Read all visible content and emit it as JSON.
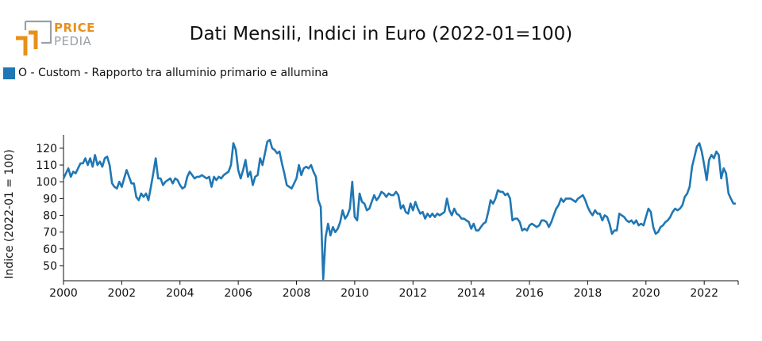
{
  "logo": {
    "word1": "PRICE",
    "word2": "PEDIA",
    "orange": "#e8901a",
    "gray": "#9aa0a6"
  },
  "chart_data": {
    "type": "line",
    "title": "Dati Mensili, Indici in Euro (2022-01=100)",
    "ylabel": "Indice (2022-01 = 100)",
    "xlabel": "",
    "xlim": [
      "2000-01",
      "2023-03"
    ],
    "ylim": [
      41,
      128
    ],
    "x_ticks": [
      "2000",
      "2002",
      "2004",
      "2006",
      "2008",
      "2010",
      "2012",
      "2014",
      "2016",
      "2018",
      "2020",
      "2022"
    ],
    "y_ticks": [
      50,
      60,
      70,
      80,
      90,
      100,
      110,
      120
    ],
    "grid": false,
    "legend_position": "top-left",
    "series": [
      {
        "name": "O - Custom - Rapporto tra alluminio primario e allumina",
        "color": "#1f77b4",
        "x": [
          "2000-01",
          "2000-02",
          "2000-03",
          "2000-04",
          "2000-05",
          "2000-06",
          "2000-07",
          "2000-08",
          "2000-09",
          "2000-10",
          "2000-11",
          "2000-12",
          "2001-01",
          "2001-02",
          "2001-03",
          "2001-04",
          "2001-05",
          "2001-06",
          "2001-07",
          "2001-08",
          "2001-09",
          "2001-10",
          "2001-11",
          "2001-12",
          "2002-01",
          "2002-02",
          "2002-03",
          "2002-04",
          "2002-05",
          "2002-06",
          "2002-07",
          "2002-08",
          "2002-09",
          "2002-10",
          "2002-11",
          "2002-12",
          "2003-01",
          "2003-02",
          "2003-03",
          "2003-04",
          "2003-05",
          "2003-06",
          "2003-07",
          "2003-08",
          "2003-09",
          "2003-10",
          "2003-11",
          "2003-12",
          "2004-01",
          "2004-02",
          "2004-03",
          "2004-04",
          "2004-05",
          "2004-06",
          "2004-07",
          "2004-08",
          "2004-09",
          "2004-10",
          "2004-11",
          "2004-12",
          "2005-01",
          "2005-02",
          "2005-03",
          "2005-04",
          "2005-05",
          "2005-06",
          "2005-07",
          "2005-08",
          "2005-09",
          "2005-10",
          "2005-11",
          "2005-12",
          "2006-01",
          "2006-02",
          "2006-03",
          "2006-04",
          "2006-05",
          "2006-06",
          "2006-07",
          "2006-08",
          "2006-09",
          "2006-10",
          "2006-11",
          "2006-12",
          "2007-01",
          "2007-02",
          "2007-03",
          "2007-04",
          "2007-05",
          "2007-06",
          "2007-07",
          "2007-08",
          "2007-09",
          "2007-10",
          "2007-11",
          "2007-12",
          "2008-01",
          "2008-02",
          "2008-03",
          "2008-04",
          "2008-05",
          "2008-06",
          "2008-07",
          "2008-08",
          "2008-09",
          "2008-10",
          "2008-11",
          "2008-12",
          "2009-01",
          "2009-02",
          "2009-03",
          "2009-04",
          "2009-05",
          "2009-06",
          "2009-07",
          "2009-08",
          "2009-09",
          "2009-10",
          "2009-11",
          "2009-12",
          "2010-01",
          "2010-02",
          "2010-03",
          "2010-04",
          "2010-05",
          "2010-06",
          "2010-07",
          "2010-08",
          "2010-09",
          "2010-10",
          "2010-11",
          "2010-12",
          "2011-01",
          "2011-02",
          "2011-03",
          "2011-04",
          "2011-05",
          "2011-06",
          "2011-07",
          "2011-08",
          "2011-09",
          "2011-10",
          "2011-11",
          "2011-12",
          "2012-01",
          "2012-02",
          "2012-03",
          "2012-04",
          "2012-05",
          "2012-06",
          "2012-07",
          "2012-08",
          "2012-09",
          "2012-10",
          "2012-11",
          "2012-12",
          "2013-01",
          "2013-02",
          "2013-03",
          "2013-04",
          "2013-05",
          "2013-06",
          "2013-07",
          "2013-08",
          "2013-09",
          "2013-10",
          "2013-11",
          "2013-12",
          "2014-01",
          "2014-02",
          "2014-03",
          "2014-04",
          "2014-05",
          "2014-06",
          "2014-07",
          "2014-08",
          "2014-09",
          "2014-10",
          "2014-11",
          "2014-12",
          "2015-01",
          "2015-02",
          "2015-03",
          "2015-04",
          "2015-05",
          "2015-06",
          "2015-07",
          "2015-08",
          "2015-09",
          "2015-10",
          "2015-11",
          "2015-12",
          "2016-01",
          "2016-02",
          "2016-03",
          "2016-04",
          "2016-05",
          "2016-06",
          "2016-07",
          "2016-08",
          "2016-09",
          "2016-10",
          "2016-11",
          "2016-12",
          "2017-01",
          "2017-02",
          "2017-03",
          "2017-04",
          "2017-05",
          "2017-06",
          "2017-07",
          "2017-08",
          "2017-09",
          "2017-10",
          "2017-11",
          "2017-12",
          "2018-01",
          "2018-02",
          "2018-03",
          "2018-04",
          "2018-05",
          "2018-06",
          "2018-07",
          "2018-08",
          "2018-09",
          "2018-10",
          "2018-11",
          "2018-12",
          "2019-01",
          "2019-02",
          "2019-03",
          "2019-04",
          "2019-05",
          "2019-06",
          "2019-07",
          "2019-08",
          "2019-09",
          "2019-10",
          "2019-11",
          "2019-12",
          "2020-01",
          "2020-02",
          "2020-03",
          "2020-04",
          "2020-05",
          "2020-06",
          "2020-07",
          "2020-08",
          "2020-09",
          "2020-10",
          "2020-11",
          "2020-12",
          "2021-01",
          "2021-02",
          "2021-03",
          "2021-04",
          "2021-05",
          "2021-06",
          "2021-07",
          "2021-08",
          "2021-09",
          "2021-10",
          "2021-11",
          "2021-12",
          "2022-01",
          "2022-02",
          "2022-03",
          "2022-04",
          "2022-05",
          "2022-06",
          "2022-07",
          "2022-08",
          "2022-09",
          "2022-10",
          "2022-11",
          "2022-12",
          "2023-01",
          "2023-02"
        ],
        "y": [
          102,
          105,
          108,
          103,
          106,
          105,
          108,
          111,
          111,
          114,
          110,
          114,
          109,
          116,
          110,
          112,
          109,
          114,
          115,
          110,
          99,
          97,
          96,
          100,
          97,
          102,
          107,
          103,
          99,
          99,
          91,
          89,
          93,
          91,
          93,
          89,
          97,
          105,
          114,
          102,
          102,
          98,
          100,
          101,
          102,
          99,
          102,
          101,
          98,
          96,
          97,
          103,
          106,
          104,
          102,
          103,
          103,
          104,
          103,
          102,
          103,
          97,
          103,
          101,
          103,
          102,
          104,
          105,
          106,
          110,
          123,
          119,
          107,
          102,
          107,
          113,
          103,
          106,
          98,
          103,
          104,
          114,
          110,
          117,
          124,
          125,
          120,
          119,
          117,
          118,
          111,
          105,
          98,
          97,
          96,
          99,
          102,
          110,
          104,
          108,
          109,
          108,
          110,
          106,
          103,
          89,
          85,
          42,
          67,
          75,
          68,
          73,
          70,
          72,
          76,
          83,
          78,
          80,
          84,
          100,
          79,
          77,
          93,
          88,
          87,
          83,
          84,
          88,
          92,
          89,
          91,
          94,
          93,
          91,
          93,
          92,
          92,
          94,
          92,
          84,
          86,
          82,
          81,
          87,
          83,
          88,
          84,
          81,
          82,
          78,
          81,
          79,
          81,
          79,
          81,
          80,
          81,
          82,
          90,
          83,
          80,
          84,
          81,
          80,
          78,
          78,
          77,
          76,
          72,
          75,
          71,
          71,
          73,
          75,
          76,
          82,
          89,
          87,
          90,
          95,
          94,
          94,
          92,
          93,
          90,
          77,
          78,
          78,
          76,
          71,
          72,
          71,
          74,
          75,
          74,
          73,
          74,
          77,
          77,
          76,
          73,
          76,
          80,
          84,
          86,
          90,
          88,
          90,
          90,
          90,
          89,
          88,
          90,
          91,
          92,
          89,
          85,
          82,
          80,
          83,
          81,
          81,
          77,
          80,
          79,
          75,
          69,
          71,
          71,
          81,
          80,
          79,
          77,
          76,
          77,
          75,
          77,
          74,
          75,
          74,
          79,
          84,
          82,
          73,
          69,
          70,
          73,
          74,
          76,
          77,
          79,
          82,
          84,
          83,
          84,
          86,
          91,
          93,
          97,
          109,
          115,
          121,
          123,
          118,
          110,
          101,
          113,
          116,
          114,
          118,
          116,
          102,
          108,
          105,
          93,
          90,
          87,
          87
        ]
      }
    ]
  }
}
